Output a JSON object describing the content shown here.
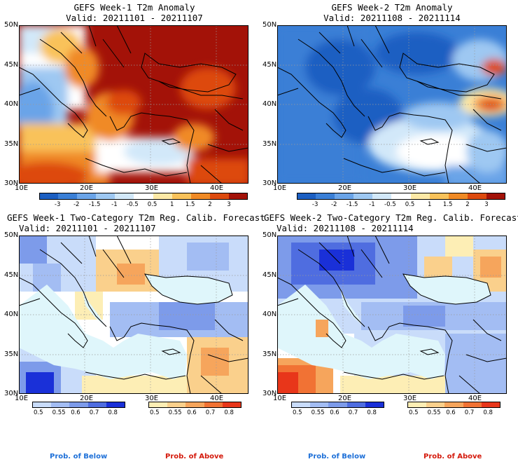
{
  "panels": [
    {
      "title": "GEFS Week-1 T2m Anomaly",
      "valid": "Valid: 20211101 - 20211107",
      "kind": "anomaly-warm"
    },
    {
      "title": "GEFS Week-2 T2m Anomaly",
      "valid": "Valid: 20211108 - 20211114",
      "kind": "anomaly-cold"
    },
    {
      "title": "GEFS Week-1 Two-Category T2m Reg. Calib. Forecast",
      "valid": "Valid: 20211101 - 20211107",
      "kind": "prob1"
    },
    {
      "title": "GEFS Week-2 Two-Category T2m Reg. Calib. Forecast",
      "valid": "Valid: 20211108 - 20211114",
      "kind": "prob2"
    }
  ],
  "lat_labels": [
    "50N",
    "45N",
    "40N",
    "35N",
    "30N"
  ],
  "lon_labels": [
    "10E",
    "20E",
    "30E",
    "40E"
  ],
  "anomaly_colorbar": {
    "labels": [
      "-3",
      "-2",
      "-1.5",
      "-1",
      "-0.5",
      "0.5",
      "1",
      "1.5",
      "2",
      "3"
    ],
    "colors": [
      "#1c5fc2",
      "#3a7fd6",
      "#6aa4e8",
      "#9ec8f2",
      "#d2e8f9",
      "#ffffff",
      "#fde9a6",
      "#f9c25a",
      "#f08a25",
      "#dd4a0e",
      "#a31208"
    ]
  },
  "prob_below_colorbar": {
    "labels": [
      "0.5",
      "0.55",
      "0.6",
      "0.7",
      "0.8"
    ],
    "colors": [
      "#c9dcfa",
      "#a3bdf3",
      "#7d9bea",
      "#4f6de0",
      "#1a30d8"
    ]
  },
  "prob_above_colorbar": {
    "labels": [
      "0.5",
      "0.55",
      "0.6",
      "0.7",
      "0.8"
    ],
    "colors": [
      "#fdeeb5",
      "#fad08c",
      "#f6a55c",
      "#f17234",
      "#e8361a"
    ]
  },
  "footer": {
    "below_label": "Prob. of Below",
    "above_label": "Prob. of Above",
    "below_color": "#1e70d8",
    "above_color": "#d41a0c"
  },
  "map_colors": {
    "sea_low_prob": "#dff6fb",
    "land_low_prob": "#ffffff",
    "graticule": "#9a9a9a"
  }
}
